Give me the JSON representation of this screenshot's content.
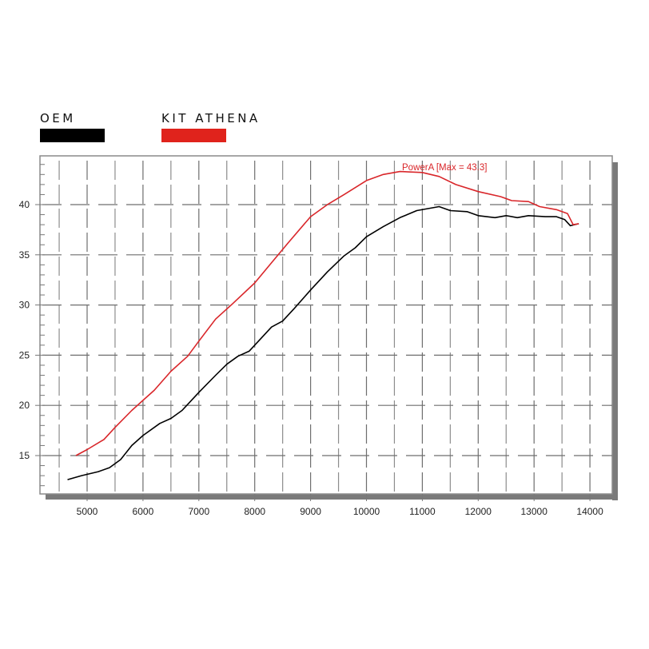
{
  "legend": {
    "items": [
      {
        "label": "OEM",
        "color": "#000000"
      },
      {
        "label": "KIT ATHENA",
        "color": "#e0231c"
      }
    ]
  },
  "annotation": {
    "text": "PowerA [Max = 43.3]",
    "color": "#d9262a"
  },
  "chart_data": {
    "type": "line",
    "title": "",
    "xlabel": "",
    "ylabel": "",
    "xlim": [
      4150,
      14450
    ],
    "ylim": [
      11.0,
      44.8
    ],
    "grid": true,
    "legend_position": "top-left",
    "x_ticks": [
      5000,
      6000,
      7000,
      8000,
      9000,
      10000,
      11000,
      12000,
      13000,
      14000
    ],
    "y_ticks": [
      15,
      20,
      25,
      30,
      35,
      40
    ],
    "annotations": [
      {
        "text": "PowerA [Max = 43.3]",
        "x": 10600,
        "y": 43.3
      }
    ],
    "series": [
      {
        "name": "OEM",
        "color": "#000000",
        "points": [
          [
            4650,
            12.6
          ],
          [
            4900,
            13.0
          ],
          [
            5200,
            13.4
          ],
          [
            5400,
            13.8
          ],
          [
            5600,
            14.6
          ],
          [
            5800,
            16.0
          ],
          [
            6000,
            17.0
          ],
          [
            6300,
            18.2
          ],
          [
            6500,
            18.7
          ],
          [
            6700,
            19.5
          ],
          [
            7000,
            21.3
          ],
          [
            7300,
            23.0
          ],
          [
            7500,
            24.1
          ],
          [
            7700,
            24.9
          ],
          [
            7900,
            25.4
          ],
          [
            8100,
            26.6
          ],
          [
            8300,
            27.8
          ],
          [
            8500,
            28.4
          ],
          [
            8700,
            29.6
          ],
          [
            9000,
            31.5
          ],
          [
            9300,
            33.3
          ],
          [
            9600,
            34.9
          ],
          [
            9800,
            35.7
          ],
          [
            10000,
            36.8
          ],
          [
            10300,
            37.8
          ],
          [
            10600,
            38.7
          ],
          [
            10900,
            39.4
          ],
          [
            11100,
            39.6
          ],
          [
            11300,
            39.8
          ],
          [
            11500,
            39.4
          ],
          [
            11800,
            39.3
          ],
          [
            12000,
            38.9
          ],
          [
            12300,
            38.7
          ],
          [
            12500,
            38.9
          ],
          [
            12700,
            38.7
          ],
          [
            12900,
            38.9
          ],
          [
            13200,
            38.8
          ],
          [
            13400,
            38.8
          ],
          [
            13550,
            38.5
          ],
          [
            13650,
            37.9
          ],
          [
            13800,
            38.1
          ]
        ]
      },
      {
        "name": "KIT ATHENA",
        "color": "#d9262a",
        "points": [
          [
            4800,
            15.0
          ],
          [
            5000,
            15.6
          ],
          [
            5300,
            16.6
          ],
          [
            5500,
            17.8
          ],
          [
            5800,
            19.5
          ],
          [
            6000,
            20.5
          ],
          [
            6200,
            21.5
          ],
          [
            6500,
            23.4
          ],
          [
            6800,
            24.9
          ],
          [
            7000,
            26.4
          ],
          [
            7300,
            28.6
          ],
          [
            7600,
            30.1
          ],
          [
            8000,
            32.2
          ],
          [
            8300,
            34.2
          ],
          [
            8600,
            36.2
          ],
          [
            9000,
            38.8
          ],
          [
            9300,
            40.0
          ],
          [
            9600,
            41.0
          ],
          [
            10000,
            42.4
          ],
          [
            10300,
            43.0
          ],
          [
            10600,
            43.3
          ],
          [
            11000,
            43.2
          ],
          [
            11300,
            42.8
          ],
          [
            11600,
            42.0
          ],
          [
            12000,
            41.3
          ],
          [
            12400,
            40.8
          ],
          [
            12600,
            40.4
          ],
          [
            12900,
            40.3
          ],
          [
            13100,
            39.8
          ],
          [
            13400,
            39.5
          ],
          [
            13600,
            39.1
          ],
          [
            13700,
            38.0
          ],
          [
            13800,
            38.1
          ]
        ]
      }
    ]
  }
}
